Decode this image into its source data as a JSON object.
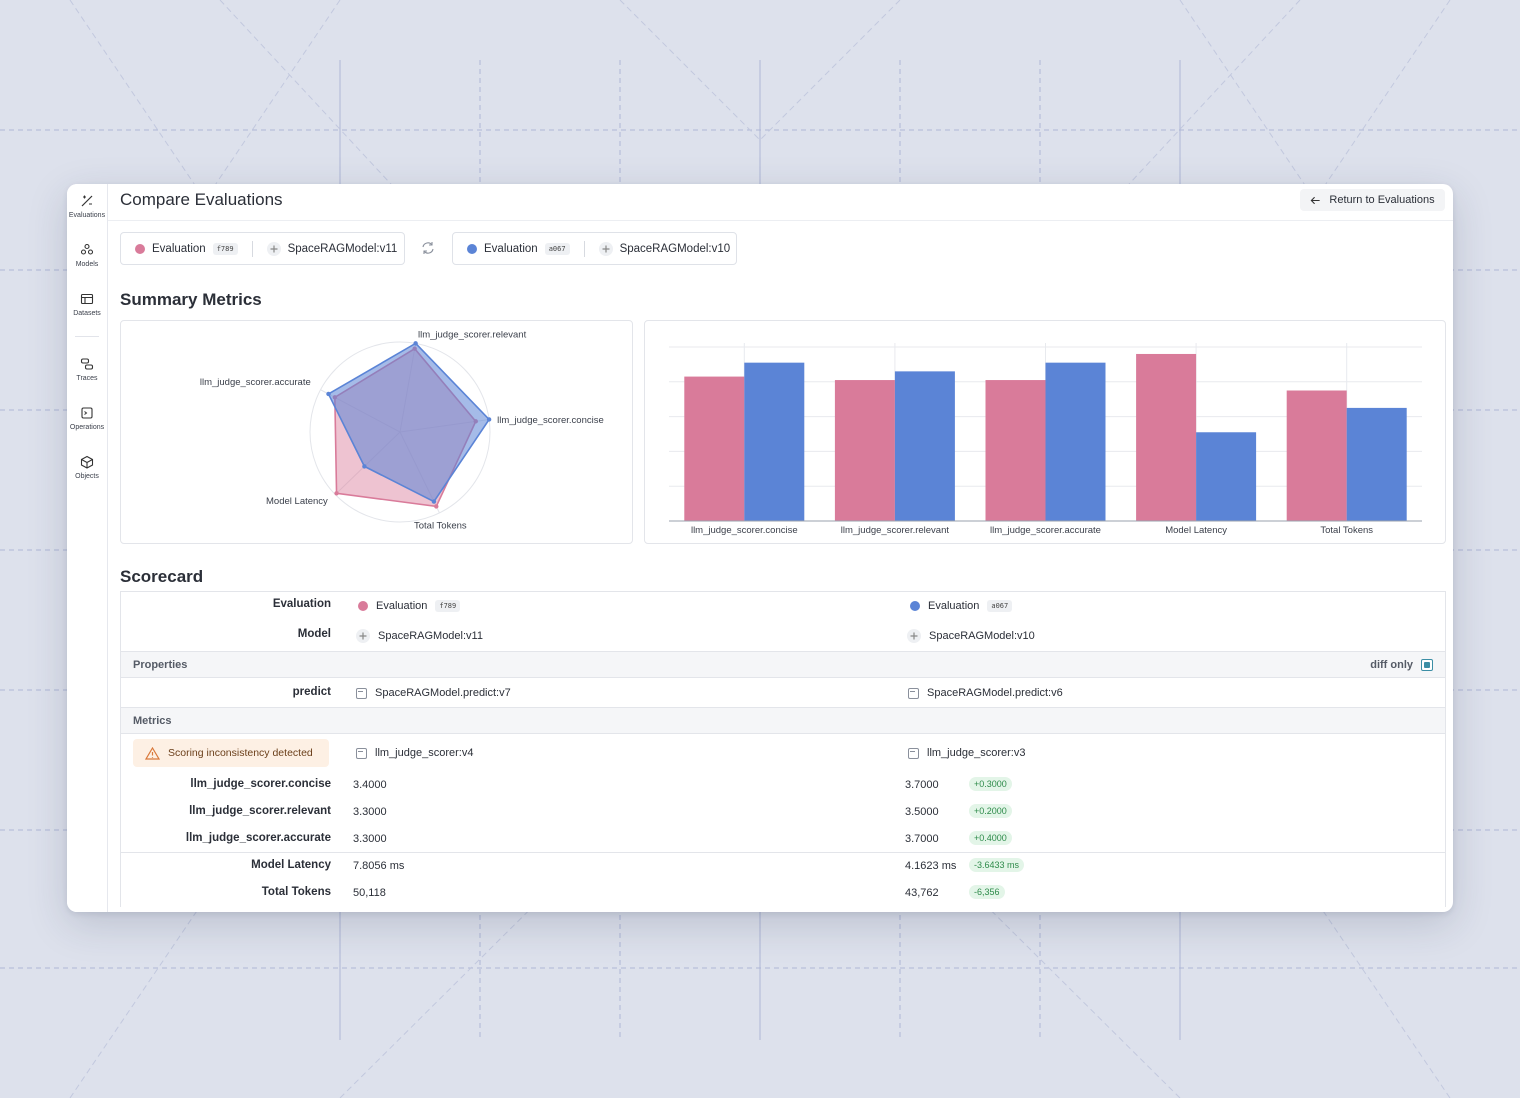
{
  "colors": {
    "eval_a": "#d97b9a",
    "eval_b": "#5b84d6"
  },
  "sidebar": {
    "items": [
      {
        "label": "Evaluations",
        "icon": "evaluations-icon"
      },
      {
        "label": "Models",
        "icon": "models-icon"
      },
      {
        "label": "Datasets",
        "icon": "datasets-icon"
      },
      {
        "label": "Traces",
        "icon": "traces-icon"
      },
      {
        "label": "Operations",
        "icon": "operations-icon"
      },
      {
        "label": "Objects",
        "icon": "objects-icon"
      }
    ]
  },
  "header": {
    "title": "Compare Evaluations",
    "return_label": "Return to Evaluations"
  },
  "pickers": [
    {
      "eval_label": "Evaluation",
      "eval_id": "f789",
      "model": "SpaceRAGModel:v11"
    },
    {
      "eval_label": "Evaluation",
      "eval_id": "a067",
      "model": "SpaceRAGModel:v10"
    }
  ],
  "summary": {
    "title": "Summary Metrics"
  },
  "chart_data": [
    {
      "type": "radar",
      "axes": [
        "llm_judge_scorer.relevant",
        "llm_judge_scorer.concise",
        "Total Tokens",
        "Model Latency",
        "llm_judge_scorer.accurate"
      ],
      "series": [
        {
          "id": "f789",
          "values": [
            0.94,
            0.85,
            0.92,
            0.98,
            0.82
          ]
        },
        {
          "id": "a067",
          "values": [
            1.0,
            1.0,
            0.86,
            0.55,
            0.9
          ]
        }
      ]
    },
    {
      "type": "bar",
      "categories": [
        "llm_judge_scorer.concise",
        "llm_judge_scorer.relevant",
        "llm_judge_scorer.accurate",
        "Model Latency",
        "Total Tokens"
      ],
      "series": [
        {
          "id": "f789",
          "values": [
            0.83,
            0.81,
            0.81,
            0.96,
            0.75
          ]
        },
        {
          "id": "a067",
          "values": [
            0.91,
            0.86,
            0.91,
            0.51,
            0.65
          ]
        }
      ],
      "ylim": [
        0,
        1
      ]
    }
  ],
  "scorecard": {
    "title": "Scorecard",
    "evaluation_label": "Evaluation",
    "model_label": "Model",
    "properties_label": "Properties",
    "diff_only_label": "diff only",
    "predict_label": "predict",
    "predict_a": "SpaceRAGModel.predict:v7",
    "predict_b": "SpaceRAGModel.predict:v6",
    "metrics_label": "Metrics",
    "warning": "Scoring inconsistency detected",
    "scorer_a": "llm_judge_scorer:v4",
    "scorer_b": "llm_judge_scorer:v3",
    "rows": [
      {
        "label": "llm_judge_scorer.concise",
        "a": "3.4000",
        "b": "3.7000",
        "delta": "+0.3000"
      },
      {
        "label": "llm_judge_scorer.relevant",
        "a": "3.3000",
        "b": "3.5000",
        "delta": "+0.2000"
      },
      {
        "label": "llm_judge_scorer.accurate",
        "a": "3.3000",
        "b": "3.7000",
        "delta": "+0.4000"
      },
      {
        "label": "Model Latency",
        "a": "7.8056 ms",
        "b": "4.1623 ms",
        "delta": "-3.6433 ms"
      },
      {
        "label": "Total Tokens",
        "a": "50,118",
        "b": "43,762",
        "delta": "-6,356"
      }
    ]
  }
}
